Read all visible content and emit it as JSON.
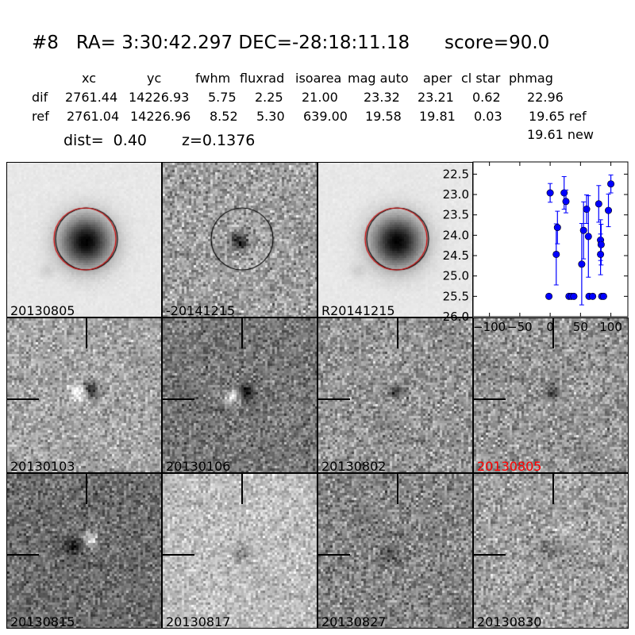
{
  "header": {
    "title": "#8   RA= 3:30:42.297 DEC=-28:18:11.18      score=90.0",
    "columns": [
      "xc",
      "yc",
      "fwhm",
      "fluxrad",
      "isoarea",
      "mag auto",
      "aper",
      "cl star",
      "phmag"
    ],
    "rows": [
      {
        "label": "dif",
        "values": [
          "2761.44",
          "14226.93",
          "5.75",
          "2.25",
          "21.00",
          "23.32",
          "23.21",
          "0.62",
          "22.96"
        ],
        "suffix": ""
      },
      {
        "label": "ref",
        "values": [
          "2761.04",
          "14226.96",
          "8.52",
          "5.30",
          "639.00",
          "19.58",
          "19.81",
          "0.03",
          "19.65"
        ],
        "suffix": "ref"
      }
    ],
    "new_phmag": "19.61 new",
    "dist": "dist=  0.40",
    "z": "z=0.1376"
  },
  "stamps": [
    {
      "label": "20130805",
      "color": "#000000"
    },
    {
      "label": "-20141215",
      "color": "#000000"
    },
    {
      "label": "R20141215",
      "color": "#000000"
    },
    {
      "label": "20130103",
      "color": "#000000"
    },
    {
      "label": "20130106",
      "color": "#000000"
    },
    {
      "label": "20130802",
      "color": "#000000"
    },
    {
      "label": "20130805",
      "color": "#ff0000"
    },
    {
      "label": "20130815",
      "color": "#000000"
    },
    {
      "label": "20130817",
      "color": "#000000"
    },
    {
      "label": "20130827",
      "color": "#000000"
    },
    {
      "label": "20130830",
      "color": "#000000"
    }
  ],
  "chart_data": {
    "type": "scatter",
    "error_bars": true,
    "color": "#0000ff",
    "xlim": [
      -127,
      128
    ],
    "ylim": [
      26.0,
      22.2
    ],
    "y_inverted": true,
    "xticks": [
      "-100",
      "-50",
      "0",
      "50",
      "100"
    ],
    "yticks": [
      "22.5",
      "23.0",
      "23.5",
      "24.0",
      "24.5",
      "25.0",
      "25.5",
      "26.0"
    ],
    "points": [
      {
        "x": -2,
        "y": 25.5,
        "err": 0.05
      },
      {
        "x": 0,
        "y": 22.96,
        "err": 0.23
      },
      {
        "x": 10,
        "y": 24.47,
        "err": 0.75
      },
      {
        "x": 12,
        "y": 23.81,
        "err": 0.4
      },
      {
        "x": 23,
        "y": 22.96,
        "err": 0.4
      },
      {
        "x": 26,
        "y": 23.17,
        "err": 0.28
      },
      {
        "x": 31,
        "y": 25.5,
        "err": 0.05
      },
      {
        "x": 35,
        "y": 25.5,
        "err": 0.05
      },
      {
        "x": 39,
        "y": 25.5,
        "err": 0.05
      },
      {
        "x": 52,
        "y": 24.71,
        "err": 1.0
      },
      {
        "x": 55,
        "y": 23.88,
        "err": 0.7
      },
      {
        "x": 60,
        "y": 23.36,
        "err": 0.35
      },
      {
        "x": 63,
        "y": 24.03,
        "err": 1.0
      },
      {
        "x": 64,
        "y": 25.5,
        "err": 0.05
      },
      {
        "x": 70,
        "y": 25.5,
        "err": 0.05
      },
      {
        "x": 80,
        "y": 23.23,
        "err": 0.45
      },
      {
        "x": 83,
        "y": 24.12,
        "err": 0.5
      },
      {
        "x": 84,
        "y": 24.23,
        "err": 0.5
      },
      {
        "x": 83,
        "y": 24.47,
        "err": 0.5
      },
      {
        "x": 85,
        "y": 25.5,
        "err": 0.05
      },
      {
        "x": 88,
        "y": 25.5,
        "err": 0.05
      },
      {
        "x": 96,
        "y": 23.39,
        "err": 0.4
      },
      {
        "x": 100,
        "y": 22.74,
        "err": 0.22
      }
    ]
  }
}
